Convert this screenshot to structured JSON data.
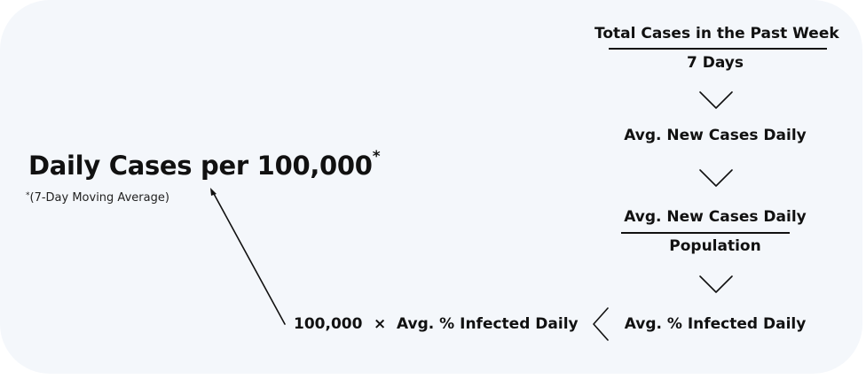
{
  "diagram": {
    "title": "Daily Cases per 100,000",
    "title_marker": "*",
    "subtitle_marker": "*",
    "subtitle": "(7-Day Moving Average)",
    "step1_numerator": "Total Cases in the Past Week",
    "step1_denominator": "7 Days",
    "step2": "Avg. New Cases Daily",
    "step3_numerator": "Avg. New Cases Daily",
    "step3_denominator": "Population",
    "step4": "Avg. % Infected Daily",
    "result_multiplier": "100,000",
    "result_operator": "×",
    "result_term": "Avg. % Infected Daily"
  }
}
